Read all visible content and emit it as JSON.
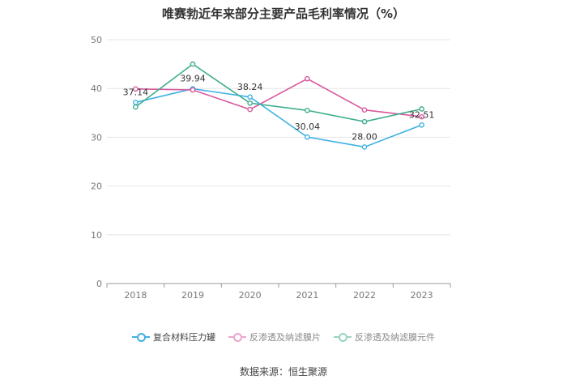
{
  "chart_data": {
    "type": "line",
    "title": "唯赛勃近年来部分主要产品毛利率情况（%）",
    "categories": [
      "2018",
      "2019",
      "2020",
      "2021",
      "2022",
      "2023"
    ],
    "ylim": [
      0,
      50
    ],
    "yticks": [
      0,
      10,
      20,
      30,
      40,
      50
    ],
    "grid": true,
    "legend_position": "bottom",
    "series": [
      {
        "name": "复合材料压力罐",
        "color": "#3fb1e3",
        "values": [
          37.14,
          39.94,
          38.24,
          30.04,
          28.0,
          32.51
        ],
        "labels": [
          "37.14",
          "39.94",
          "38.24",
          "30.04",
          "28.00",
          "32.51"
        ]
      },
      {
        "name": "反渗透及纳滤膜片",
        "color": "#d9589e",
        "values": [
          39.9,
          39.7,
          35.7,
          42.0,
          35.6,
          34.2
        ]
      },
      {
        "name": "反渗透及纳滤膜元件",
        "color": "#3fae8e",
        "values": [
          36.2,
          45.0,
          37.0,
          35.5,
          33.2,
          35.8
        ]
      }
    ]
  },
  "source": "数据来源：恒生聚源"
}
